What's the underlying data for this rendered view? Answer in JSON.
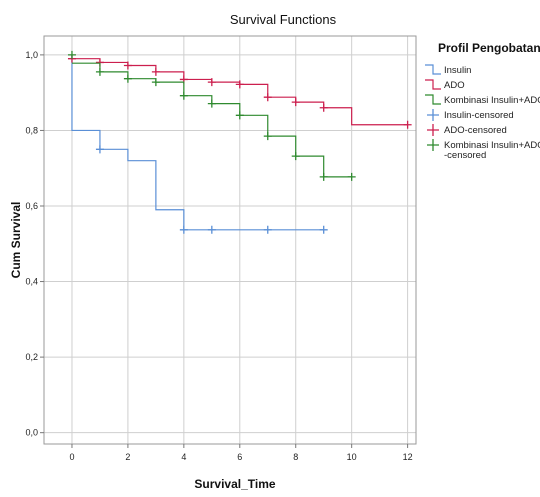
{
  "chart_data": {
    "type": "line",
    "step": true,
    "title": "Survival Functions",
    "xlabel": "Survival_Time",
    "ylabel": "Cum Survival",
    "xlim": [
      -1,
      12.3
    ],
    "ylim": [
      -0.03,
      1.05
    ],
    "x_ticks": [
      {
        "value": 0,
        "label": "0"
      },
      {
        "value": 2,
        "label": "2"
      },
      {
        "value": 4,
        "label": "4"
      },
      {
        "value": 6,
        "label": "6"
      },
      {
        "value": 8,
        "label": "8"
      },
      {
        "value": 10,
        "label": "10"
      },
      {
        "value": 12,
        "label": "12"
      }
    ],
    "y_ticks": [
      {
        "value": 0,
        "label": "0,0"
      },
      {
        "value": 0.2,
        "label": "0,2"
      },
      {
        "value": 0.4,
        "label": "0,4"
      },
      {
        "value": 0.6,
        "label": "0,6"
      },
      {
        "value": 0.8,
        "label": "0,8"
      },
      {
        "value": 1.0,
        "label": "1,0"
      }
    ],
    "grid": {
      "x": true,
      "y": true
    },
    "legend": {
      "title": "Profil Pengobatan",
      "placement": "right",
      "entries": [
        {
          "label": "Insulin",
          "symbol": "step",
          "color": "#5a8fd6"
        },
        {
          "label": "ADO",
          "symbol": "step",
          "color": "#cc1f4e"
        },
        {
          "label": "Kombinasi Insulin+ADO",
          "symbol": "step",
          "color": "#2f8a2f"
        },
        {
          "label": "Insulin-censored",
          "symbol": "plus",
          "color": "#5a8fd6"
        },
        {
          "label": "ADO-censored",
          "symbol": "plus",
          "color": "#cc1f4e"
        },
        {
          "label": "Kombinasi Insulin+ADO-censored",
          "symbol": "plus",
          "color": "#2f8a2f"
        }
      ]
    },
    "series": [
      {
        "name": "Insulin",
        "color": "#5a8fd6",
        "steps": [
          [
            0,
            1.0
          ],
          [
            0,
            0.8
          ],
          [
            1,
            0.75
          ],
          [
            2,
            0.72
          ],
          [
            3,
            0.59
          ],
          [
            4,
            0.537
          ],
          [
            9,
            0.537
          ]
        ],
        "censored": [
          [
            1,
            0.75
          ],
          [
            4,
            0.537
          ],
          [
            5,
            0.537
          ],
          [
            7,
            0.537
          ],
          [
            9,
            0.537
          ]
        ]
      },
      {
        "name": "ADO",
        "color": "#cc1f4e",
        "steps": [
          [
            0,
            0.99
          ],
          [
            1,
            0.98
          ],
          [
            2,
            0.972
          ],
          [
            3,
            0.955
          ],
          [
            4,
            0.935
          ],
          [
            5,
            0.928
          ],
          [
            6,
            0.922
          ],
          [
            7,
            0.888
          ],
          [
            8,
            0.875
          ],
          [
            9,
            0.86
          ],
          [
            10,
            0.815
          ],
          [
            12,
            0.815
          ]
        ],
        "censored": [
          [
            0,
            0.99
          ],
          [
            1,
            0.98
          ],
          [
            2,
            0.972
          ],
          [
            3,
            0.955
          ],
          [
            4,
            0.935
          ],
          [
            5,
            0.928
          ],
          [
            6,
            0.922
          ],
          [
            7,
            0.888
          ],
          [
            8,
            0.875
          ],
          [
            9,
            0.86
          ],
          [
            12,
            0.815
          ]
        ]
      },
      {
        "name": "Kombinasi Insulin+ADO",
        "color": "#2f8a2f",
        "steps": [
          [
            0,
            0.978
          ],
          [
            1,
            0.955
          ],
          [
            2,
            0.937
          ],
          [
            3,
            0.928
          ],
          [
            4,
            0.892
          ],
          [
            5,
            0.871
          ],
          [
            6,
            0.84
          ],
          [
            7,
            0.785
          ],
          [
            8,
            0.732
          ],
          [
            9,
            0.677
          ],
          [
            10,
            0.677
          ]
        ],
        "censored": [
          [
            0,
            1.0
          ],
          [
            1,
            0.955
          ],
          [
            2,
            0.937
          ],
          [
            3,
            0.928
          ],
          [
            4,
            0.892
          ],
          [
            5,
            0.871
          ],
          [
            6,
            0.84
          ],
          [
            7,
            0.785
          ],
          [
            8,
            0.732
          ],
          [
            9,
            0.677
          ],
          [
            10,
            0.677
          ]
        ]
      }
    ]
  }
}
